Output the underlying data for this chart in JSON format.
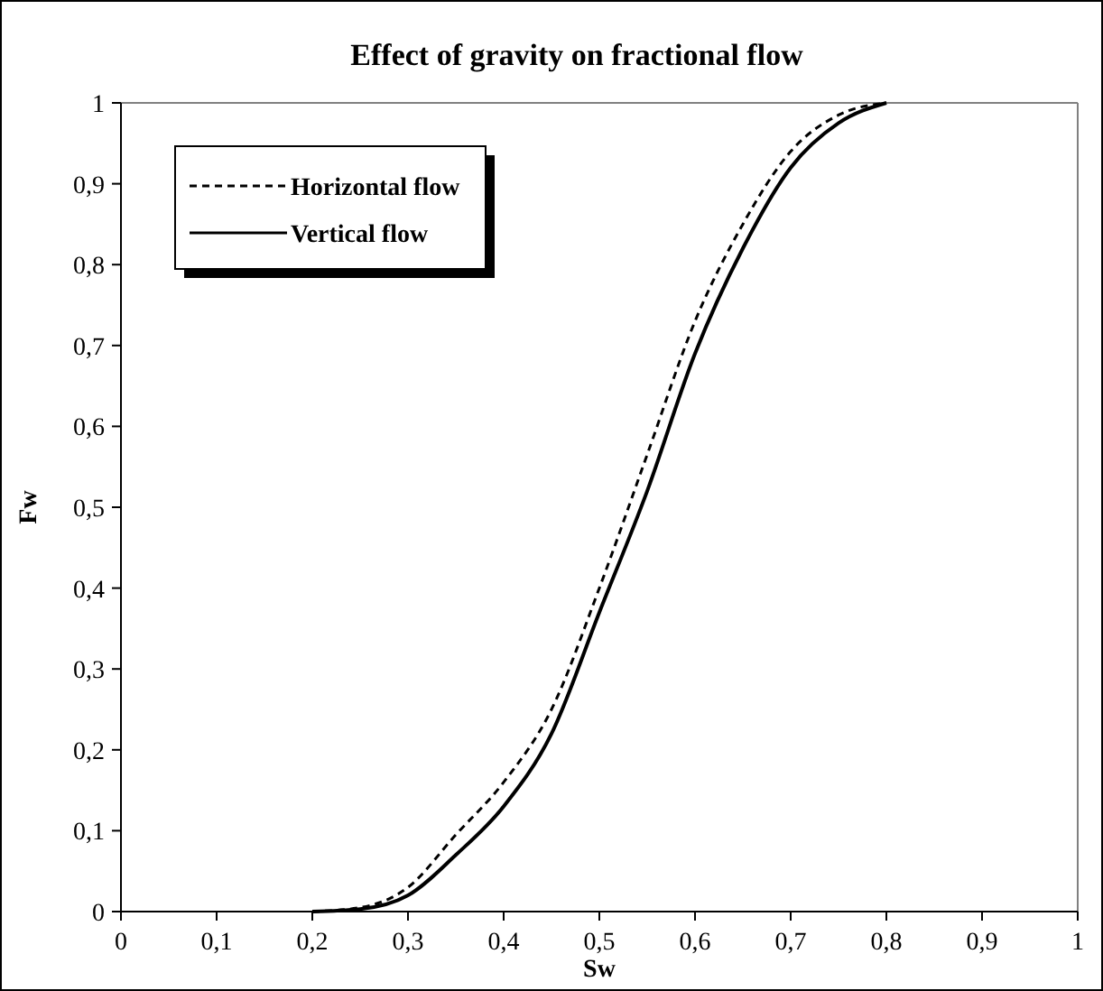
{
  "chart_data": {
    "type": "line",
    "title": "Effect of gravity on fractional flow",
    "xlabel": "Sw",
    "ylabel": "Fw",
    "legend": "top left",
    "grid": false,
    "x": [
      0.2,
      0.25,
      0.3,
      0.35,
      0.4,
      0.45,
      0.5,
      0.55,
      0.6,
      0.65,
      0.7,
      0.75,
      0.8
    ],
    "xlim": [
      0,
      1
    ],
    "ylim": [
      0,
      1
    ],
    "xticks": [
      0,
      {
        "value": 0.1,
        "label": "0,1"
      },
      {
        "value": 0.2,
        "label": "0,2"
      },
      {
        "value": 0.3,
        "label": "0,3"
      },
      {
        "value": 0.4,
        "label": "0,4"
      },
      {
        "value": 0.5,
        "label": "0,5"
      },
      {
        "value": 0.6,
        "label": "0,6"
      },
      {
        "value": 0.7,
        "label": "0,7"
      },
      {
        "value": 0.8,
        "label": "0,8"
      },
      {
        "value": 0.9,
        "label": "0,9"
      },
      1
    ],
    "yticks": [
      0,
      {
        "value": 0.1,
        "label": "0,1"
      },
      {
        "value": 0.2,
        "label": "0,2"
      },
      {
        "value": 0.3,
        "label": "0,3"
      },
      {
        "value": 0.4,
        "label": "0,4"
      },
      {
        "value": 0.5,
        "label": "0,5"
      },
      {
        "value": 0.6,
        "label": "0,6"
      },
      {
        "value": 0.7,
        "label": "0,7"
      },
      {
        "value": 0.8,
        "label": "0,8"
      },
      {
        "value": 0.9,
        "label": "0,9"
      },
      1
    ],
    "series": [
      {
        "name": "Horizontal flow",
        "color": "#000000",
        "line_style": "dashed",
        "values": [
          0,
          0.005,
          0.03,
          0.095,
          0.16,
          0.25,
          0.4,
          0.565,
          0.73,
          0.85,
          0.94,
          0.985,
          1
        ]
      },
      {
        "name": "Vertical flow",
        "color": "#000000",
        "line_style": "solid",
        "values": [
          0,
          0.003,
          0.02,
          0.07,
          0.13,
          0.22,
          0.37,
          0.52,
          0.69,
          0.82,
          0.92,
          0.975,
          1
        ]
      }
    ]
  }
}
